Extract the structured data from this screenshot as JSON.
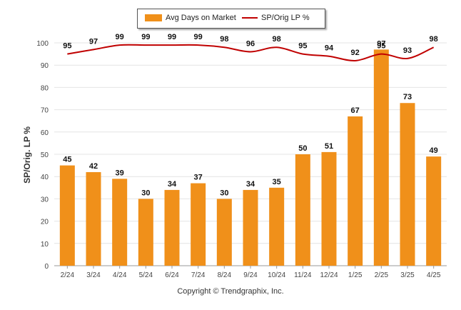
{
  "chart_data": {
    "type": "bar",
    "categories": [
      "2/24",
      "3/24",
      "4/24",
      "5/24",
      "6/24",
      "7/24",
      "8/24",
      "9/24",
      "10/24",
      "11/24",
      "12/24",
      "1/25",
      "2/25",
      "3/25",
      "4/25"
    ],
    "series": [
      {
        "name": "Avg Days on Market",
        "type": "bar",
        "color": "#F0901A",
        "values": [
          45,
          42,
          39,
          30,
          34,
          37,
          30,
          34,
          35,
          50,
          51,
          67,
          97,
          73,
          49
        ]
      },
      {
        "name": "SP/Orig LP %",
        "type": "line",
        "color": "#C00000",
        "values": [
          95,
          97,
          99,
          99,
          99,
          99,
          98,
          96,
          98,
          95,
          94,
          92,
          95,
          93,
          98
        ]
      }
    ],
    "ylabel": "SP/Orig. LP %",
    "ylim": [
      0,
      100
    ],
    "yticks": [
      0,
      10,
      20,
      30,
      40,
      50,
      60,
      70,
      80,
      90,
      100
    ],
    "grid": true,
    "legend": "top"
  },
  "footer": {
    "copyright": "Copyright © Trendgraphix, Inc."
  }
}
